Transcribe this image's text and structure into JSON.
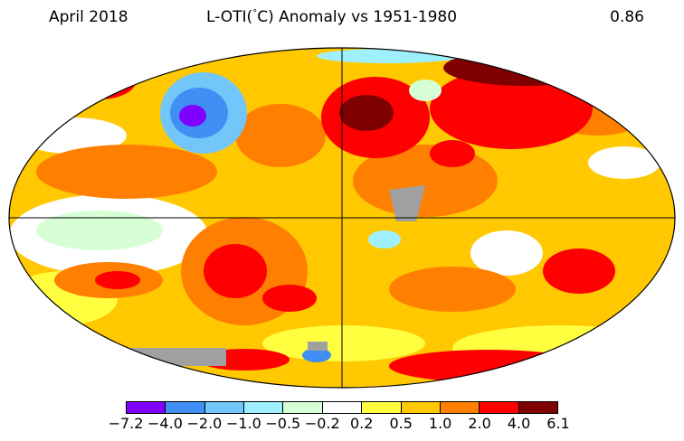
{
  "header": {
    "date": "April 2018",
    "title_prefix": "L-OTI(",
    "title_degree": "°",
    "title_suffix": "C) Anomaly vs 1951-1980",
    "global_mean": "0.86"
  },
  "colorbar": {
    "ticks": [
      "−7.2",
      "−4.0",
      "−2.0",
      "−1.0",
      "−0.5",
      "−0.2",
      "0.2",
      "0.5",
      "1.0",
      "2.0",
      "4.0",
      "6.1"
    ],
    "colors": [
      "#8000ff",
      "#3f8ff5",
      "#73c6fa",
      "#9ff0ff",
      "#d6ffd6",
      "#ffffff",
      "#ffff40",
      "#ffc800",
      "#ff7f00",
      "#ff0000",
      "#7f0000"
    ],
    "missing_color": "#a0a0a0"
  },
  "map": {
    "projection": "Robinson",
    "gridlines": [
      "equator",
      "prime-meridian"
    ]
  }
}
